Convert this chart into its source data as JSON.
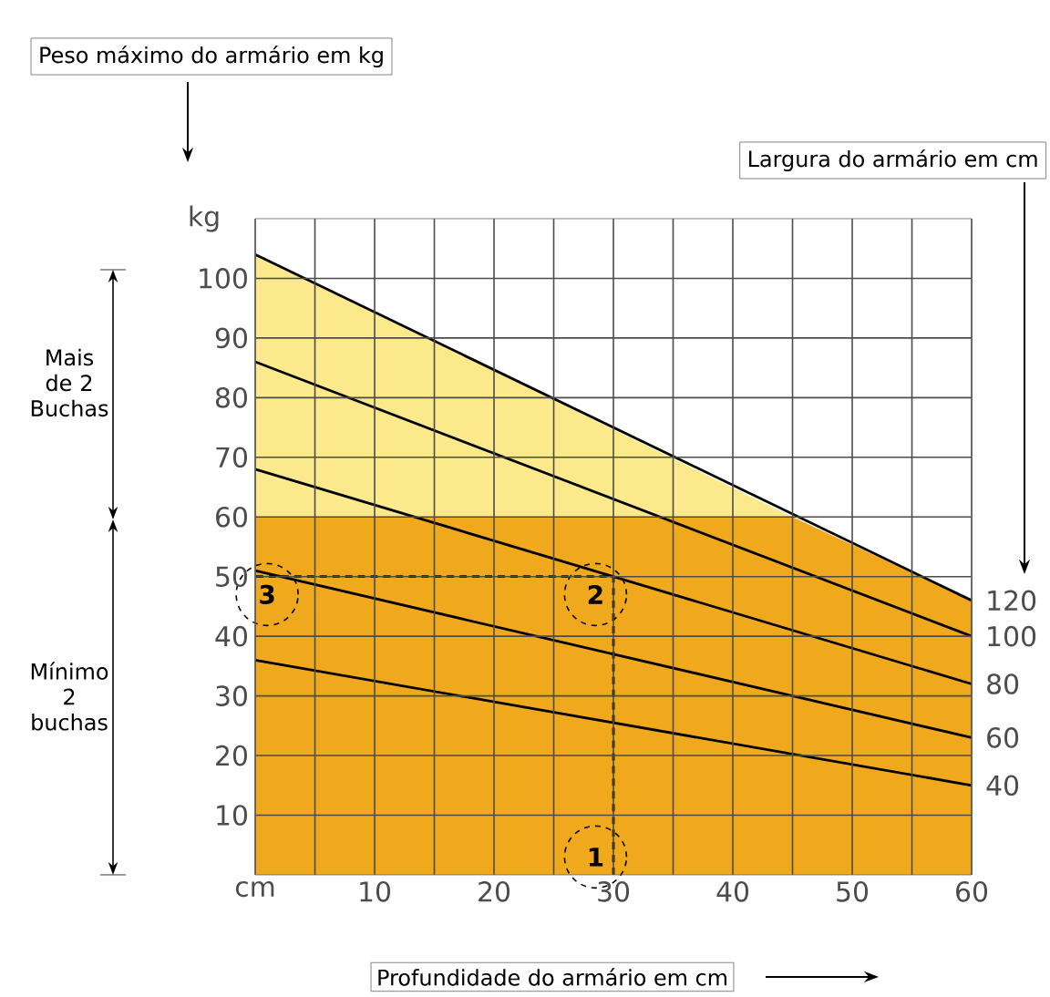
{
  "chart_data": {
    "type": "line",
    "xlabel": "Profundidade do armário em cm",
    "ylabel": "kg",
    "legend_title": "Largura do armário em cm",
    "xlim": [
      0,
      60
    ],
    "ylim": [
      0,
      110
    ],
    "xticks": [
      {
        "value": 0,
        "label": "cm"
      },
      10,
      20,
      30,
      40,
      50,
      60
    ],
    "yticks": [
      10,
      20,
      30,
      40,
      50,
      60,
      70,
      80,
      90,
      100
    ],
    "grid": true,
    "line_style": "solid",
    "series": [
      {
        "type": "area",
        "x": [
          0,
          45
        ],
        "values": [
          104,
          60
        ],
        "color": "#fbe98c"
      },
      {
        "type": "area",
        "x": [
          0,
          45,
          60
        ],
        "values": [
          60,
          60,
          46
        ],
        "color": "#f0a81c"
      },
      {
        "name": "120",
        "x": [
          0,
          60
        ],
        "values": [
          104,
          46
        ],
        "color": "#000000"
      },
      {
        "name": "100",
        "x": [
          0,
          60
        ],
        "values": [
          86,
          40
        ],
        "color": "#000000"
      },
      {
        "name": "80",
        "x": [
          0,
          60
        ],
        "values": [
          68,
          32
        ],
        "color": "#000000"
      },
      {
        "name": "60",
        "x": [
          0,
          60
        ],
        "values": [
          51,
          23
        ],
        "color": "#000000"
      },
      {
        "name": "40",
        "x": [
          0,
          60
        ],
        "values": [
          36,
          15
        ],
        "color": "#000000"
      },
      {
        "x": [
          30,
          30,
          0
        ],
        "values": [
          0,
          50,
          50
        ],
        "color": "#000000",
        "line_style": "dashed"
      }
    ],
    "annotations": [
      "Peso máximo do armário em kg",
      "Mais de 2 Buchas",
      "Mínimo 2 buchas",
      "1",
      "2",
      "3"
    ]
  }
}
